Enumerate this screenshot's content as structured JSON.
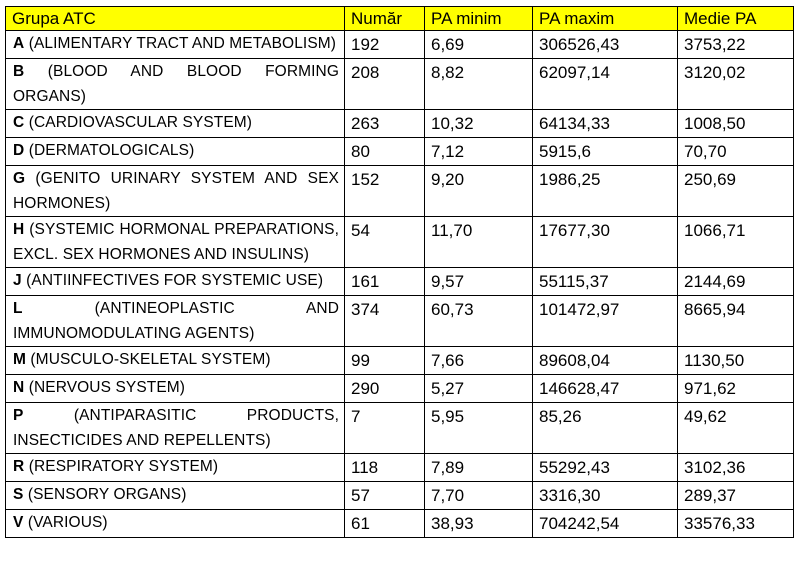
{
  "table": {
    "headers": [
      "Grupa ATC",
      "Număr",
      "PA minim",
      "PA maxim",
      "Medie PA"
    ],
    "rows": [
      {
        "code": "A",
        "desc": " (ALIMENTARY TRACT AND METABOLISM)",
        "numar": "192",
        "pa_minim": "6,69",
        "pa_maxim": "306526,43",
        "medie_pa": "3753,22"
      },
      {
        "code": "B",
        "desc": " (BLOOD AND BLOOD FORMING ORGANS)",
        "numar": "208",
        "pa_minim": "8,82",
        "pa_maxim": "62097,14",
        "medie_pa": "3120,02"
      },
      {
        "code": "C",
        "desc": " (CARDIOVASCULAR SYSTEM)",
        "numar": "263",
        "pa_minim": "10,32",
        "pa_maxim": "64134,33",
        "medie_pa": "1008,50"
      },
      {
        "code": "D",
        "desc": " (DERMATOLOGICALS)",
        "numar": "80",
        "pa_minim": "7,12",
        "pa_maxim": "5915,6",
        "medie_pa": "70,70"
      },
      {
        "code": "G",
        "desc": " (GENITO URINARY SYSTEM AND SEX HORMONES)",
        "numar": "152",
        "pa_minim": "9,20",
        "pa_maxim": "1986,25",
        "medie_pa": "250,69"
      },
      {
        "code": "H",
        "desc": " (SYSTEMIC HORMONAL PREPARATIONS, EXCL. SEX HORMONES AND INSULINS)",
        "numar": "54",
        "pa_minim": "11,70",
        "pa_maxim": "17677,30",
        "medie_pa": "1066,71"
      },
      {
        "code": "J",
        "desc": " (ANTIINFECTIVES FOR SYSTEMIC USE)",
        "numar": "161",
        "pa_minim": "9,57",
        "pa_maxim": "55115,37",
        "medie_pa": "2144,69"
      },
      {
        "code": "L",
        "desc": " (ANTINEOPLASTIC AND IMMUNOMODULATING AGENTS)",
        "numar": "374",
        "pa_minim": "60,73",
        "pa_maxim": "101472,97",
        "medie_pa": "8665,94"
      },
      {
        "code": "M",
        "desc": " (MUSCULO-SKELETAL SYSTEM)",
        "numar": "99",
        "pa_minim": "7,66",
        "pa_maxim": "89608,04",
        "medie_pa": "1130,50"
      },
      {
        "code": "N",
        "desc": " (NERVOUS SYSTEM)",
        "numar": "290",
        "pa_minim": "5,27",
        "pa_maxim": "146628,47",
        "medie_pa": "971,62"
      },
      {
        "code": "P",
        "desc": " (ANTIPARASITIC PRODUCTS, INSECTICIDES AND REPELLENTS)",
        "numar": "7",
        "pa_minim": "5,95",
        "pa_maxim": "85,26",
        "medie_pa": "49,62"
      },
      {
        "code": "R",
        "desc": " (RESPIRATORY SYSTEM)",
        "numar": "118",
        "pa_minim": "7,89",
        "pa_maxim": "55292,43",
        "medie_pa": "3102,36"
      },
      {
        "code": "S",
        "desc": " (SENSORY ORGANS)",
        "numar": "57",
        "pa_minim": "7,70",
        "pa_maxim": "3316,30",
        "medie_pa": "289,37"
      },
      {
        "code": "V",
        "desc": " (VARIOUS)",
        "numar": "61",
        "pa_minim": "38,93",
        "pa_maxim": "704242,54",
        "medie_pa": "33576,33"
      }
    ]
  },
  "colors": {
    "header_background": "#ffff00",
    "border": "#000000"
  }
}
